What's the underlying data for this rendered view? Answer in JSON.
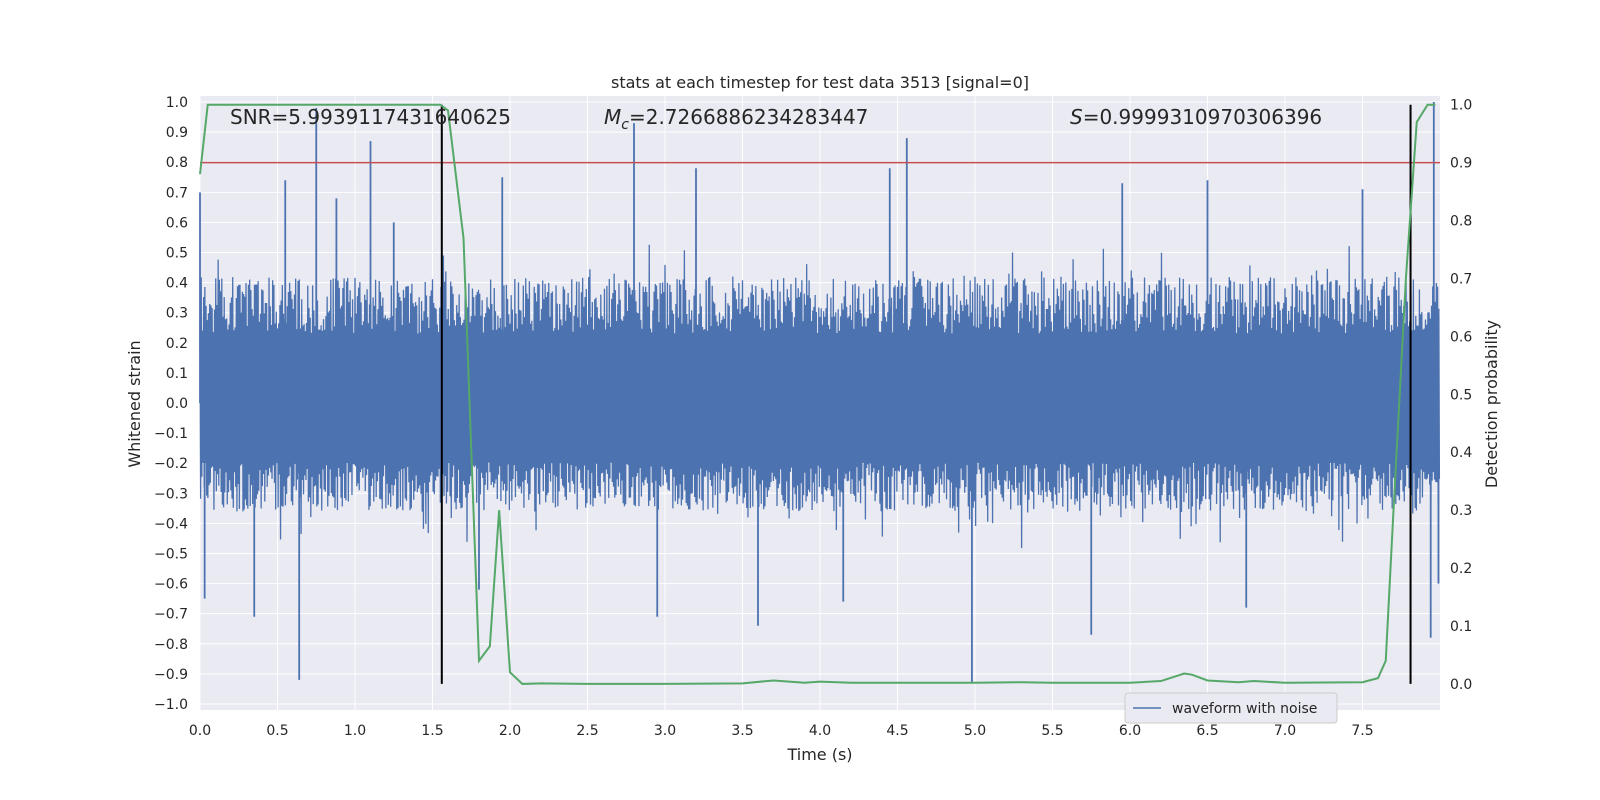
{
  "chart_data": {
    "type": "line",
    "title": "stats at each timestep for test data 3513 [signal=0]",
    "xlabel": "Time (s)",
    "ylabel": "Whitened strain",
    "y2label": "Detection probability",
    "xlim": [
      0.0,
      8.0
    ],
    "ylim": [
      -1.02,
      1.02
    ],
    "y2lim": [
      -0.045,
      1.015
    ],
    "xticks": [
      "0.0",
      "0.5",
      "1.0",
      "1.5",
      "2.0",
      "2.5",
      "3.0",
      "3.5",
      "4.0",
      "4.5",
      "5.0",
      "5.5",
      "6.0",
      "6.5",
      "7.0",
      "7.5"
    ],
    "xtick_values": [
      0.0,
      0.5,
      1.0,
      1.5,
      2.0,
      2.5,
      3.0,
      3.5,
      4.0,
      4.5,
      5.0,
      5.5,
      6.0,
      6.5,
      7.0,
      7.5
    ],
    "yticks": [
      "1.0",
      "0.9",
      "0.8",
      "0.7",
      "0.6",
      "0.5",
      "0.4",
      "0.3",
      "0.2",
      "0.1",
      "0.0",
      "−0.1",
      "−0.2",
      "−0.3",
      "−0.4",
      "−0.5",
      "−0.6",
      "−0.7",
      "−0.8",
      "−0.9",
      "−1.0"
    ],
    "ytick_values": [
      1.0,
      0.9,
      0.8,
      0.7,
      0.6,
      0.5,
      0.4,
      0.3,
      0.2,
      0.1,
      0.0,
      -0.1,
      -0.2,
      -0.3,
      -0.4,
      -0.5,
      -0.6,
      -0.7,
      -0.8,
      -0.9,
      -1.0
    ],
    "y2ticks": [
      "1.0",
      "0.9",
      "0.8",
      "0.7",
      "0.6",
      "0.5",
      "0.4",
      "0.3",
      "0.2",
      "0.1",
      "0.0"
    ],
    "y2tick_values": [
      1.0,
      0.9,
      0.8,
      0.7,
      0.6,
      0.5,
      0.4,
      0.3,
      0.2,
      0.1,
      0.0
    ],
    "annotations": {
      "snr": "SNR=5.9939117431640625",
      "mc_symbol": "M",
      "mc_sub": "c",
      "mc_value": "=2.7266886234283447",
      "s_symbol": "S",
      "s_value": "=0.9999310970306396"
    },
    "legend": {
      "label": "waveform with noise",
      "position": "lower-right"
    },
    "colors": {
      "waveform": "#4c72b0",
      "probability": "#55a868",
      "threshold": "#c44e52",
      "markers": "#000000",
      "background": "#eaeaf2",
      "grid": "#ffffff"
    },
    "threshold_probability": 0.9,
    "detection_markers_x": [
      1.56,
      7.81
    ],
    "marker_range_prob": [
      0.0,
      1.0
    ],
    "waveform": {
      "name": "waveform with noise",
      "duration_s": 8.0,
      "samples": 2048,
      "envelope_pos": 0.42,
      "envelope_neg": -0.36,
      "spikes": [
        {
          "t": 0.0,
          "v": 0.7
        },
        {
          "t": 0.03,
          "v": -0.65
        },
        {
          "t": 0.35,
          "v": -0.71
        },
        {
          "t": 0.55,
          "v": 0.74
        },
        {
          "t": 0.64,
          "v": -0.92
        },
        {
          "t": 0.75,
          "v": 0.98
        },
        {
          "t": 0.88,
          "v": 0.68
        },
        {
          "t": 1.1,
          "v": 0.87
        },
        {
          "t": 1.25,
          "v": 0.6
        },
        {
          "t": 1.8,
          "v": -0.62
        },
        {
          "t": 1.95,
          "v": 0.75
        },
        {
          "t": 2.8,
          "v": 0.93
        },
        {
          "t": 2.95,
          "v": -0.71
        },
        {
          "t": 3.2,
          "v": 0.78
        },
        {
          "t": 3.6,
          "v": -0.74
        },
        {
          "t": 4.15,
          "v": -0.66
        },
        {
          "t": 4.45,
          "v": 0.78
        },
        {
          "t": 4.56,
          "v": 0.88
        },
        {
          "t": 4.98,
          "v": -0.93
        },
        {
          "t": 5.75,
          "v": -0.77
        },
        {
          "t": 5.95,
          "v": 0.73
        },
        {
          "t": 6.5,
          "v": 0.74
        },
        {
          "t": 6.75,
          "v": -0.68
        },
        {
          "t": 7.5,
          "v": 0.71
        },
        {
          "t": 7.94,
          "v": -0.78
        },
        {
          "t": 7.96,
          "v": 1.0
        },
        {
          "t": 7.99,
          "v": -0.6
        }
      ]
    },
    "probability": {
      "name": "detection probability",
      "x": [
        0.0,
        0.05,
        1.2,
        1.55,
        1.6,
        1.7,
        1.8,
        1.87,
        1.93,
        2.0,
        2.08,
        2.2,
        2.5,
        3.0,
        3.5,
        3.7,
        3.9,
        4.0,
        4.2,
        4.5,
        5.0,
        5.3,
        5.5,
        6.0,
        6.2,
        6.35,
        6.4,
        6.5,
        6.7,
        6.8,
        7.0,
        7.5,
        7.6,
        7.65,
        7.7,
        7.78,
        7.85,
        7.92,
        7.97
      ],
      "y": [
        0.88,
        1.0,
        1.0,
        1.0,
        0.99,
        0.77,
        0.04,
        0.065,
        0.3,
        0.02,
        0.0,
        0.001,
        0.0,
        0.0,
        0.001,
        0.006,
        0.002,
        0.004,
        0.002,
        0.002,
        0.002,
        0.003,
        0.002,
        0.002,
        0.005,
        0.018,
        0.016,
        0.006,
        0.003,
        0.005,
        0.002,
        0.003,
        0.01,
        0.04,
        0.3,
        0.7,
        0.97,
        1.0,
        1.0
      ]
    }
  }
}
